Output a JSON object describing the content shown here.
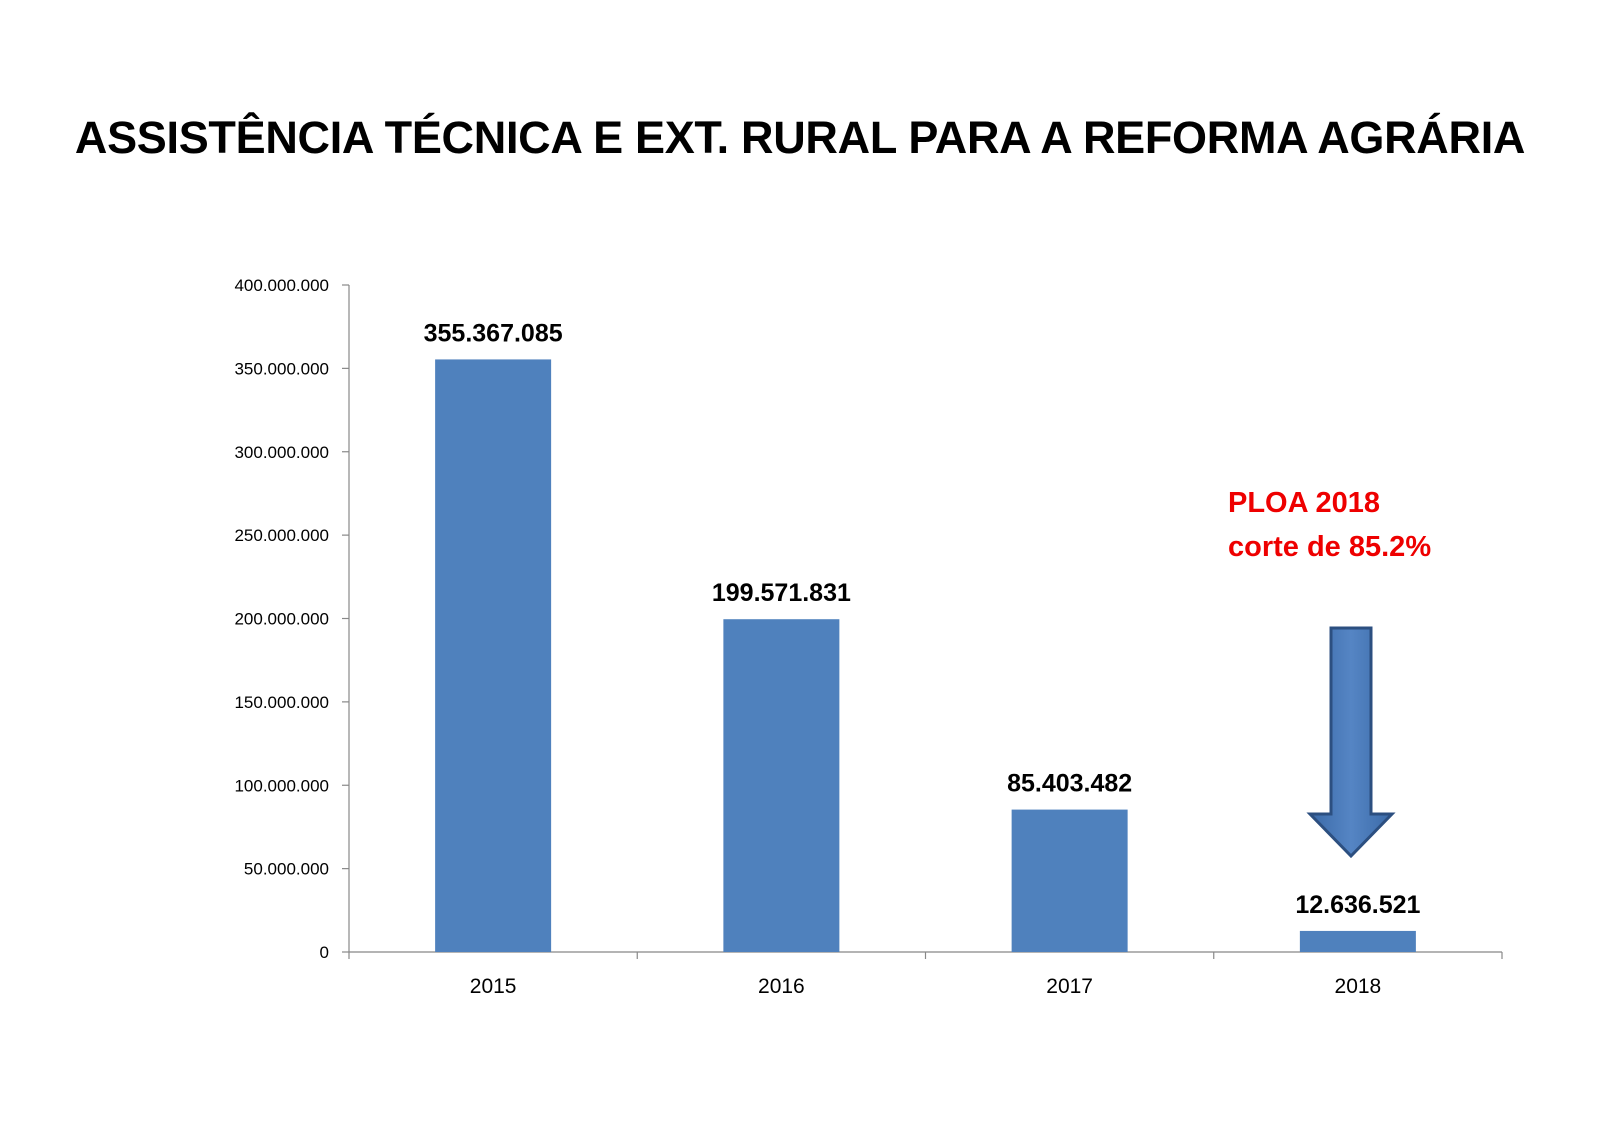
{
  "title": "ASSISTÊNCIA TÉCNICA E EXT. RURAL PARA A REFORMA AGRÁRIA",
  "chart_data": {
    "type": "bar",
    "categories": [
      "2015",
      "2016",
      "2017",
      "2018"
    ],
    "values": [
      355367085,
      199571831,
      85403482,
      12636521
    ],
    "value_labels": [
      "355.367.085",
      "199.571.831",
      "85.403.482",
      "12.636.521"
    ],
    "ylim": [
      0,
      400000000
    ],
    "yticks": [
      0,
      50000000,
      100000000,
      150000000,
      200000000,
      250000000,
      300000000,
      350000000,
      400000000
    ],
    "ytick_labels": [
      "0",
      "50.000.000",
      "100.000.000",
      "150.000.000",
      "200.000.000",
      "250.000.000",
      "300.000.000",
      "350.000.000",
      "400.000.000"
    ],
    "xlabel": "",
    "ylabel": "",
    "grid": false,
    "bar_color": "#4f81bd",
    "annotation": {
      "lines": [
        "PLOA 2018",
        "corte de 85.2%"
      ],
      "color": "#ee0000",
      "arrow_icon": "down-arrow-icon"
    }
  }
}
